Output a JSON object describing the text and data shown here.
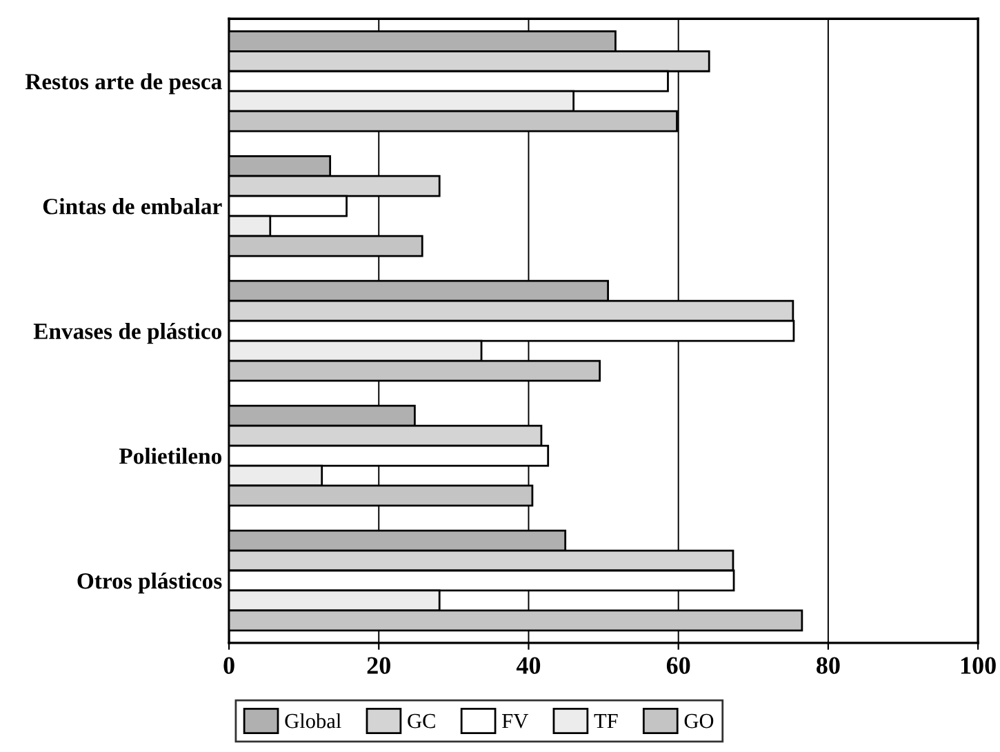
{
  "chart_data": {
    "type": "bar",
    "orientation": "horizontal",
    "categories": [
      "Restos arte de pesca",
      "Cintas de embalar",
      "Envases de plástico",
      "Polietileno",
      "Otros plásticos"
    ],
    "series": [
      {
        "name": "Global",
        "color": "#b0b0b0",
        "values": [
          51.6,
          13.5,
          50.6,
          24.8,
          44.9
        ]
      },
      {
        "name": "GC",
        "color": "#d4d4d4",
        "values": [
          64.1,
          28.1,
          75.3,
          41.7,
          67.3
        ]
      },
      {
        "name": "FV",
        "color": "#ffffff",
        "values": [
          58.6,
          15.7,
          75.4,
          42.6,
          67.4
        ]
      },
      {
        "name": "TF",
        "color": "#ececec",
        "values": [
          46.0,
          5.5,
          33.7,
          12.4,
          28.1
        ]
      },
      {
        "name": "GO",
        "color": "#c4c4c4",
        "values": [
          59.8,
          25.8,
          49.5,
          40.5,
          76.5
        ]
      }
    ],
    "xlim": [
      0,
      100
    ],
    "xticks": [
      0,
      20,
      40,
      60,
      80,
      100
    ],
    "grid": "x",
    "legend": "bottom left"
  }
}
